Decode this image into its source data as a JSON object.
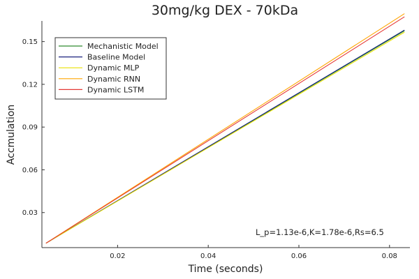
{
  "chart_data": {
    "type": "line",
    "title": "30mg/kg DEX - 70kDa",
    "xlabel": "Time (seconds)",
    "ylabel": "Accmulation",
    "xlim": [
      0.0033,
      0.0845
    ],
    "ylim": [
      0.0054,
      0.1645
    ],
    "x_ticks": [
      0.02,
      0.04,
      0.06,
      0.08
    ],
    "x_tick_labels": [
      "0.02",
      "0.04",
      "0.06",
      "0.08"
    ],
    "y_ticks": [
      0.03,
      0.06,
      0.09,
      0.12,
      0.15
    ],
    "y_tick_labels": [
      "0.03",
      "0.06",
      "0.09",
      "0.12",
      "0.15"
    ],
    "grid": false,
    "legend_position": "top-left",
    "annotation": "L_p=1.13e-6,K=1.78e-6,Rs=6.5",
    "series": [
      {
        "name": "Mechanistic Model",
        "color": "#2e8b2e",
        "x": [
          0.0042,
          0.0833
        ],
        "y": [
          0.0085,
          0.1576
        ]
      },
      {
        "name": "Baseline Model",
        "color": "#1a237e",
        "x": [
          0.0042,
          0.0833
        ],
        "y": [
          0.0085,
          0.1581
        ]
      },
      {
        "name": "Dynamic MLP",
        "color": "#e8e000",
        "x": [
          0.0042,
          0.0833
        ],
        "y": [
          0.0085,
          0.1566
        ]
      },
      {
        "name": "Dynamic RNN",
        "color": "#ffa500",
        "x": [
          0.0042,
          0.0833
        ],
        "y": [
          0.0085,
          0.1696
        ]
      },
      {
        "name": "Dynamic LSTM",
        "color": "#e53935",
        "x": [
          0.0042,
          0.0833
        ],
        "y": [
          0.0085,
          0.1674
        ]
      }
    ]
  }
}
